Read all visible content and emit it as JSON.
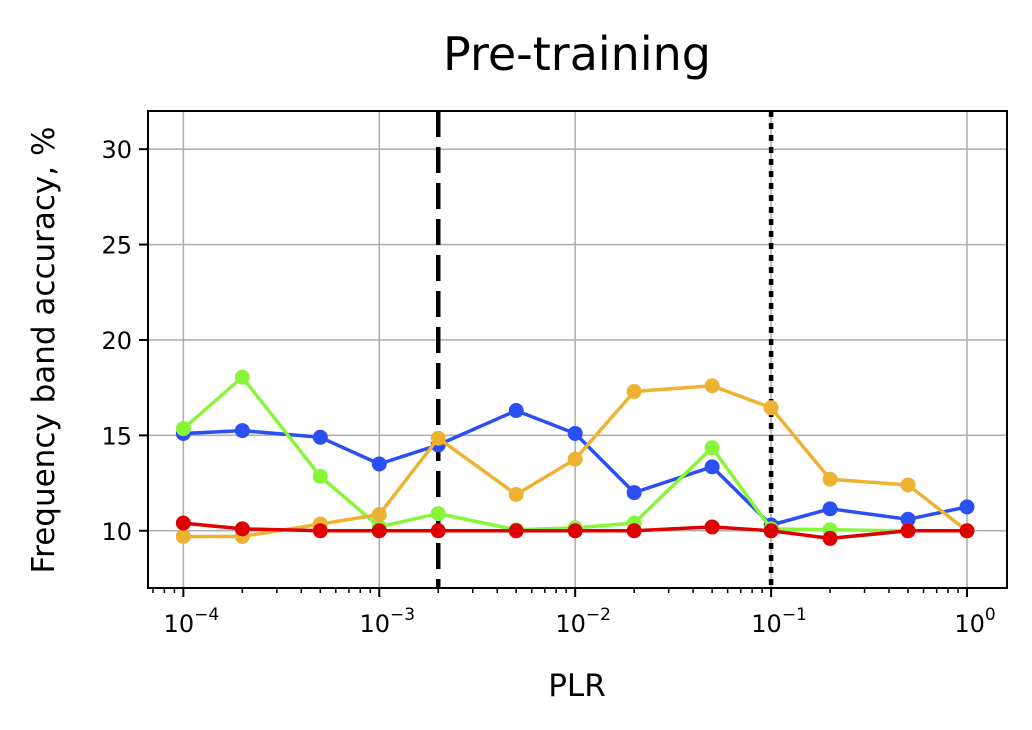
{
  "chart_data": {
    "type": "line",
    "title": "Pre-training",
    "xlabel": "PLR",
    "ylabel": "Frequency band accuracy, %",
    "xscale": "log",
    "xlim": [
      6.6e-05,
      1.6
    ],
    "ylim": [
      7,
      32
    ],
    "grid": true,
    "x": [
      0.0001,
      0.0002,
      0.0005,
      0.001,
      0.002,
      0.005,
      0.01,
      0.02,
      0.05,
      0.1,
      0.2,
      0.5,
      1
    ],
    "xticks": [
      {
        "value": 0.0001,
        "base": "10",
        "exp": "−4"
      },
      {
        "value": 0.001,
        "base": "10",
        "exp": "−3"
      },
      {
        "value": 0.01,
        "base": "10",
        "exp": "−2"
      },
      {
        "value": 0.1,
        "base": "10",
        "exp": "−1"
      },
      {
        "value": 1,
        "base": "10",
        "exp": "0"
      }
    ],
    "yticks": [
      10,
      15,
      20,
      25,
      30
    ],
    "vlines": [
      {
        "x": 0.002,
        "style": "dashed",
        "color": "#000000"
      },
      {
        "x": 0.1,
        "style": "dotted",
        "color": "#000000"
      }
    ],
    "series": [
      {
        "color": "#2b4ff0",
        "values": [
          15.1,
          15.25,
          14.9,
          13.5,
          14.5,
          16.3,
          15.1,
          12.0,
          13.35,
          10.3,
          11.15,
          10.6,
          11.25
        ]
      },
      {
        "color": "#88f53a",
        "values": [
          15.35,
          18.05,
          12.85,
          10.2,
          10.9,
          10.05,
          10.15,
          10.4,
          14.35,
          10.1,
          10.05,
          10.0,
          10.0
        ]
      },
      {
        "color": "#eeb233",
        "values": [
          9.7,
          9.7,
          10.35,
          10.85,
          14.85,
          11.9,
          13.75,
          17.3,
          17.6,
          16.45,
          12.7,
          12.4,
          10.0
        ]
      },
      {
        "color": "#dd0000",
        "values": [
          10.4,
          10.1,
          10.0,
          10.0,
          10.0,
          10.0,
          10.0,
          10.0,
          10.2,
          10.0,
          9.6,
          10.0,
          10.0
        ]
      }
    ]
  }
}
